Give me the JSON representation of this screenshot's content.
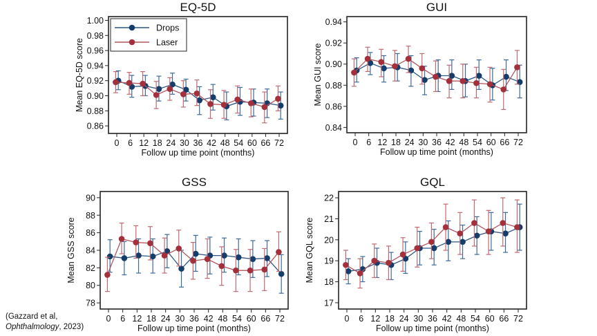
{
  "citation": {
    "line1": "(Gazzard et al,",
    "journal": "Ophthalmology",
    "year_suffix": ", 2023)"
  },
  "series_styles": [
    {
      "name": "Drops",
      "line_color": "#2b5685",
      "marker_color": "#153d6b",
      "error_color": "#3a6a9a"
    },
    {
      "name": "Laser",
      "line_color": "#b3545d",
      "marker_color": "#a3303b",
      "error_color": "#bf6a72"
    }
  ],
  "chart_data": [
    {
      "type": "line",
      "title": "EQ-5D",
      "xlabel": "Follow up time point (months)",
      "ylabel": "Mean EQ-5D score",
      "x": [
        0,
        6,
        12,
        18,
        24,
        30,
        36,
        42,
        48,
        54,
        60,
        66,
        72
      ],
      "xticks": [
        "0",
        "6",
        "12",
        "18",
        "24",
        "30",
        "36",
        "42",
        "48",
        "54",
        "60",
        "66",
        "72"
      ],
      "ylim": [
        0.85,
        1.005
      ],
      "yticks": [
        "0.86",
        "0.88",
        "0.90",
        "0.92",
        "0.94",
        "0.96",
        "0.98",
        "1.00"
      ],
      "ytick_values": [
        0.86,
        0.88,
        0.9,
        0.92,
        0.94,
        0.96,
        0.98,
        1.0
      ],
      "legend": {
        "entries": [
          "Drops",
          "Laser"
        ],
        "position": "top-left"
      },
      "series": [
        {
          "name": "Drops",
          "values": [
            0.92,
            0.912,
            0.913,
            0.909,
            0.915,
            0.908,
            0.894,
            0.898,
            0.886,
            0.892,
            0.891,
            0.89,
            0.887
          ],
          "lower": [
            0.908,
            0.898,
            0.9,
            0.893,
            0.902,
            0.893,
            0.875,
            0.881,
            0.868,
            0.874,
            0.873,
            0.871,
            0.869
          ],
          "upper": [
            0.933,
            0.927,
            0.927,
            0.926,
            0.93,
            0.922,
            0.912,
            0.915,
            0.905,
            0.911,
            0.909,
            0.909,
            0.905
          ]
        },
        {
          "name": "Laser",
          "values": [
            0.918,
            0.917,
            0.916,
            0.901,
            0.909,
            0.902,
            0.903,
            0.889,
            0.888,
            0.895,
            0.89,
            0.885,
            0.896
          ],
          "lower": [
            0.904,
            0.902,
            0.9,
            0.883,
            0.894,
            0.885,
            0.887,
            0.87,
            0.87,
            0.877,
            0.872,
            0.864,
            0.88
          ],
          "upper": [
            0.932,
            0.931,
            0.932,
            0.919,
            0.924,
            0.92,
            0.921,
            0.908,
            0.907,
            0.913,
            0.909,
            0.905,
            0.913
          ]
        }
      ]
    },
    {
      "type": "line",
      "title": "GUI",
      "xlabel": "Follow up time point (months)",
      "ylabel": "Mean GUI score",
      "x": [
        0,
        6,
        12,
        18,
        24,
        30,
        36,
        42,
        48,
        54,
        60,
        66,
        72
      ],
      "xticks": [
        "0",
        "6",
        "12",
        "18",
        "24",
        "30",
        "36",
        "42",
        "48",
        "54",
        "60",
        "66",
        "72"
      ],
      "ylim": [
        0.835,
        0.945
      ],
      "yticks": [
        "0.84",
        "0.86",
        "0.88",
        "0.90",
        "0.92",
        "0.94"
      ],
      "ytick_values": [
        0.84,
        0.86,
        0.88,
        0.9,
        0.92,
        0.94
      ],
      "series": [
        {
          "name": "Drops",
          "values": [
            0.894,
            0.901,
            0.896,
            0.897,
            0.894,
            0.885,
            0.889,
            0.889,
            0.884,
            0.889,
            0.88,
            0.888,
            0.883
          ],
          "lower": [
            0.883,
            0.89,
            0.883,
            0.884,
            0.879,
            0.871,
            0.874,
            0.876,
            0.869,
            0.876,
            0.866,
            0.875,
            0.868
          ],
          "upper": [
            0.906,
            0.911,
            0.908,
            0.91,
            0.908,
            0.898,
            0.904,
            0.904,
            0.9,
            0.904,
            0.896,
            0.904,
            0.899
          ]
        },
        {
          "name": "Laser",
          "values": [
            0.892,
            0.905,
            0.902,
            0.898,
            0.905,
            0.896,
            0.888,
            0.884,
            0.884,
            0.882,
            0.881,
            0.876,
            0.897
          ],
          "lower": [
            0.879,
            0.893,
            0.888,
            0.884,
            0.892,
            0.881,
            0.874,
            0.868,
            0.868,
            0.868,
            0.864,
            0.857,
            0.881
          ],
          "upper": [
            0.905,
            0.916,
            0.914,
            0.913,
            0.917,
            0.91,
            0.903,
            0.899,
            0.9,
            0.897,
            0.897,
            0.895,
            0.913
          ]
        }
      ]
    },
    {
      "type": "line",
      "title": "GSS",
      "xlabel": "Follow up time point (months)",
      "ylabel": "Mean GSS score",
      "x": [
        0,
        6,
        12,
        18,
        24,
        30,
        36,
        42,
        48,
        54,
        60,
        66,
        72
      ],
      "xticks": [
        "0",
        "6",
        "12",
        "18",
        "24",
        "30",
        "36",
        "42",
        "48",
        "54",
        "60",
        "66",
        "72"
      ],
      "ylim": [
        77.3,
        90.7
      ],
      "yticks": [
        "78",
        "80",
        "82",
        "84",
        "86",
        "88",
        "90"
      ],
      "ytick_values": [
        78,
        80,
        82,
        84,
        86,
        88,
        90
      ],
      "series": [
        {
          "name": "Drops",
          "values": [
            83.3,
            83.1,
            83.4,
            83.3,
            83.9,
            81.9,
            83.6,
            83.4,
            83.4,
            83.2,
            83.0,
            83.1,
            81.3
          ],
          "lower": [
            81.5,
            81.2,
            81.4,
            81.4,
            82.0,
            79.8,
            81.6,
            81.3,
            81.5,
            81.2,
            80.9,
            81.0,
            79.1
          ],
          "upper": [
            85.2,
            85.0,
            85.3,
            85.3,
            85.8,
            84.0,
            85.7,
            85.5,
            85.4,
            85.3,
            85.1,
            85.1,
            83.5
          ]
        },
        {
          "name": "Laser",
          "values": [
            81.2,
            85.3,
            84.9,
            84.8,
            83.4,
            84.2,
            82.8,
            83.0,
            82.2,
            81.7,
            81.7,
            81.8,
            83.8
          ],
          "lower": [
            79.3,
            83.6,
            83.1,
            82.9,
            81.4,
            82.2,
            80.7,
            80.8,
            80.0,
            79.3,
            79.3,
            79.4,
            81.6
          ],
          "upper": [
            83.2,
            87.1,
            86.8,
            86.7,
            85.4,
            86.3,
            84.9,
            85.3,
            84.4,
            84.1,
            84.1,
            84.2,
            86.1
          ]
        }
      ]
    },
    {
      "type": "line",
      "title": "GQL",
      "xlabel": "Follow up time point (months)",
      "ylabel": "Mean GQL score",
      "x": [
        0,
        6,
        12,
        18,
        24,
        30,
        36,
        42,
        48,
        54,
        60,
        66,
        72
      ],
      "xticks": [
        "0",
        "6",
        "12",
        "18",
        "24",
        "30",
        "36",
        "42",
        "48",
        "54",
        "60",
        "66",
        "72"
      ],
      "ylim": [
        16.7,
        22.3
      ],
      "yticks": [
        "17",
        "18",
        "19",
        "20",
        "21",
        "22"
      ],
      "ytick_values": [
        17,
        18,
        19,
        20,
        21,
        22
      ],
      "series": [
        {
          "name": "Drops",
          "values": [
            18.5,
            18.6,
            18.9,
            18.8,
            19.1,
            19.6,
            19.6,
            19.9,
            19.9,
            20.2,
            20.4,
            20.3,
            20.6
          ],
          "lower": [
            17.9,
            18.0,
            18.2,
            18.1,
            18.4,
            18.8,
            18.8,
            19.0,
            19.1,
            19.3,
            19.5,
            19.4,
            19.5
          ],
          "upper": [
            19.1,
            19.2,
            19.6,
            19.4,
            19.9,
            20.4,
            20.5,
            20.9,
            20.7,
            21.1,
            21.3,
            21.3,
            21.7
          ]
        },
        {
          "name": "Laser",
          "values": [
            18.8,
            18.4,
            19.0,
            18.9,
            19.3,
            19.6,
            19.9,
            20.6,
            20.3,
            20.8,
            20.4,
            20.8,
            20.6
          ],
          "lower": [
            18.1,
            17.7,
            18.2,
            18.1,
            18.5,
            18.7,
            19.1,
            19.5,
            19.3,
            19.7,
            19.3,
            19.7,
            19.4
          ],
          "upper": [
            19.5,
            19.1,
            19.8,
            19.7,
            20.1,
            20.6,
            20.8,
            21.7,
            21.3,
            21.9,
            21.4,
            22.0,
            21.9
          ]
        }
      ]
    }
  ]
}
